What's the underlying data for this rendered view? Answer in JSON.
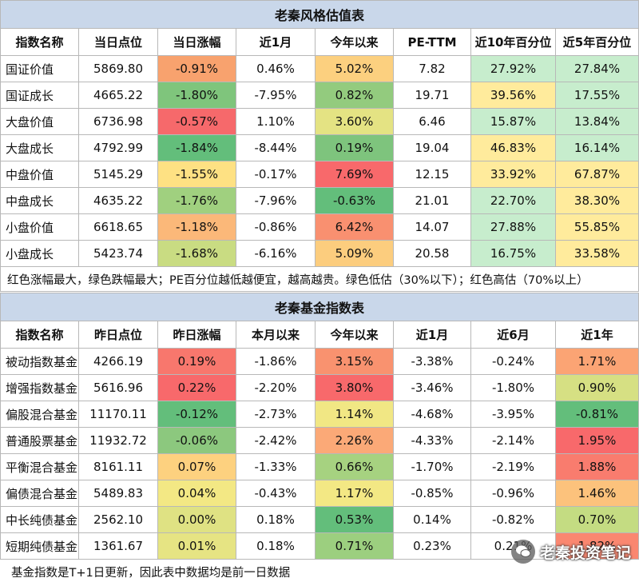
{
  "table1": {
    "title": "老秦风格估值表",
    "headers": [
      "指数名称",
      "当日点位",
      "当日涨幅",
      "近1月",
      "今年以来",
      "PE-TTM",
      "近10年百分位",
      "近5年百分位"
    ],
    "rows": [
      {
        "cells": [
          "国证价值",
          "5869.80",
          "-0.91%",
          "0.46%",
          "5.02%",
          "7.82",
          "27.92%",
          "27.84%"
        ],
        "colors": [
          "",
          "",
          "#f8a26e",
          "",
          "#fcd07f",
          "",
          "#c7edcd",
          "#c7edcd"
        ]
      },
      {
        "cells": [
          "国证成长",
          "4665.22",
          "-1.80%",
          "-7.95%",
          "0.82%",
          "19.71",
          "39.56%",
          "17.55%"
        ],
        "colors": [
          "",
          "",
          "#7fc57c",
          "",
          "#93cb7e",
          "",
          "#ffeb9c",
          "#c7edcd"
        ]
      },
      {
        "cells": [
          "大盘价值",
          "6736.98",
          "-0.57%",
          "1.10%",
          "3.60%",
          "6.46",
          "15.87%",
          "13.84%"
        ],
        "colors": [
          "",
          "",
          "#f6696b",
          "",
          "#e4e383",
          "",
          "#c7edcd",
          "#c7edcd"
        ]
      },
      {
        "cells": [
          "大盘成长",
          "4792.99",
          "-1.84%",
          "-8.44%",
          "0.19%",
          "19.04",
          "46.83%",
          "16.14%"
        ],
        "colors": [
          "",
          "",
          "#63be7b",
          "",
          "#7ec47d",
          "",
          "#ffeb9c",
          "#c7edcd"
        ]
      },
      {
        "cells": [
          "中盘价值",
          "5145.29",
          "-1.55%",
          "-0.17%",
          "7.69%",
          "12.15",
          "33.92%",
          "67.87%"
        ],
        "colors": [
          "",
          "",
          "#fee183",
          "",
          "#f8696b",
          "",
          "#ffeb9c",
          "#ffeb9c"
        ]
      },
      {
        "cells": [
          "中盘成长",
          "4635.22",
          "-1.76%",
          "-7.96%",
          "-0.63%",
          "21.01",
          "22.70%",
          "38.30%"
        ],
        "colors": [
          "",
          "",
          "#a0d07f",
          "",
          "#63be7b",
          "",
          "#c7edcd",
          "#ffeb9c"
        ]
      },
      {
        "cells": [
          "小盘价值",
          "6618.65",
          "-1.18%",
          "-0.86%",
          "6.42%",
          "14.07",
          "27.88%",
          "55.85%"
        ],
        "colors": [
          "",
          "",
          "#fbb879",
          "",
          "#f99070",
          "",
          "#c7edcd",
          "#ffeb9c"
        ]
      },
      {
        "cells": [
          "小盘成长",
          "5423.74",
          "-1.68%",
          "-6.16%",
          "5.09%",
          "20.58",
          "16.75%",
          "33.58%"
        ],
        "colors": [
          "",
          "",
          "#c9dc82",
          "",
          "#fccd7e",
          "",
          "#c7edcd",
          "#ffeb9c"
        ]
      }
    ],
    "note": "红色涨幅最大，绿色跌幅最大；PE百分位越低越便宜，越高越贵。绿色低估（30%以下）；红色高估（70%以上）"
  },
  "table2": {
    "title": "老秦基金指数表",
    "headers": [
      "指数名称",
      "昨日点位",
      "昨日涨幅",
      "本月以来",
      "今年以来",
      "近1月",
      "近6月",
      "近1年"
    ],
    "rows": [
      {
        "cells": [
          "被动指数基金",
          "4266.19",
          "0.19%",
          "-1.86%",
          "3.15%",
          "-3.38%",
          "-0.24%",
          "1.71%"
        ],
        "colors": [
          "",
          "",
          "#f8776d",
          "",
          "#f9926f",
          "",
          "",
          "#fba474"
        ]
      },
      {
        "cells": [
          "增强指数基金",
          "5616.96",
          "0.22%",
          "-2.20%",
          "3.80%",
          "-3.46%",
          "-1.80%",
          "0.90%"
        ],
        "colors": [
          "",
          "",
          "#f8696b",
          "",
          "#f8696b",
          "",
          "",
          "#d6e083"
        ]
      },
      {
        "cells": [
          "偏股混合基金",
          "11170.11",
          "-0.12%",
          "-2.73%",
          "1.14%",
          "-4.68%",
          "-3.95%",
          "-0.81%"
        ],
        "colors": [
          "",
          "",
          "#63be7b",
          "",
          "#f1e784",
          "",
          "",
          "#63be7b"
        ]
      },
      {
        "cells": [
          "普通股票基金",
          "11932.72",
          "-0.06%",
          "-2.42%",
          "2.26%",
          "-4.33%",
          "-2.14%",
          "1.95%"
        ],
        "colors": [
          "",
          "",
          "#8cc87e",
          "",
          "#fba977",
          "",
          "",
          "#f8696b"
        ]
      },
      {
        "cells": [
          "平衡混合基金",
          "8161.11",
          "0.07%",
          "-1.33%",
          "0.66%",
          "-1.70%",
          "-2.19%",
          "1.88%"
        ],
        "colors": [
          "",
          "",
          "#fdd17f",
          "",
          "#a6d280",
          "",
          "",
          "#f97c6e"
        ]
      },
      {
        "cells": [
          "偏债混合基金",
          "5489.83",
          "0.04%",
          "-0.43%",
          "1.17%",
          "-0.85%",
          "-0.96%",
          "1.46%"
        ],
        "colors": [
          "",
          "",
          "#f3e884",
          "",
          "#f3e884",
          "",
          "",
          "#fcc27c"
        ]
      },
      {
        "cells": [
          "中长纯债基金",
          "2562.10",
          "0.00%",
          "0.18%",
          "0.53%",
          "0.14%",
          "-0.82%",
          "0.70%"
        ],
        "colors": [
          "",
          "",
          "#dfe283",
          "",
          "#63be7b",
          "",
          "",
          "#c4dc82"
        ]
      },
      {
        "cells": [
          "短期纯债基金",
          "1361.67",
          "0.01%",
          "0.18%",
          "0.71%",
          "0.23%",
          "0.21%",
          "1.82%"
        ],
        "colors": [
          "",
          "",
          "#e6e483",
          "",
          "#9ccf7f",
          "",
          "",
          "#fa8770"
        ]
      }
    ]
  },
  "footer": "基金指数是T+1日更新，因此表中数据均是前一日数据",
  "watermark": "老秦投资笔记"
}
